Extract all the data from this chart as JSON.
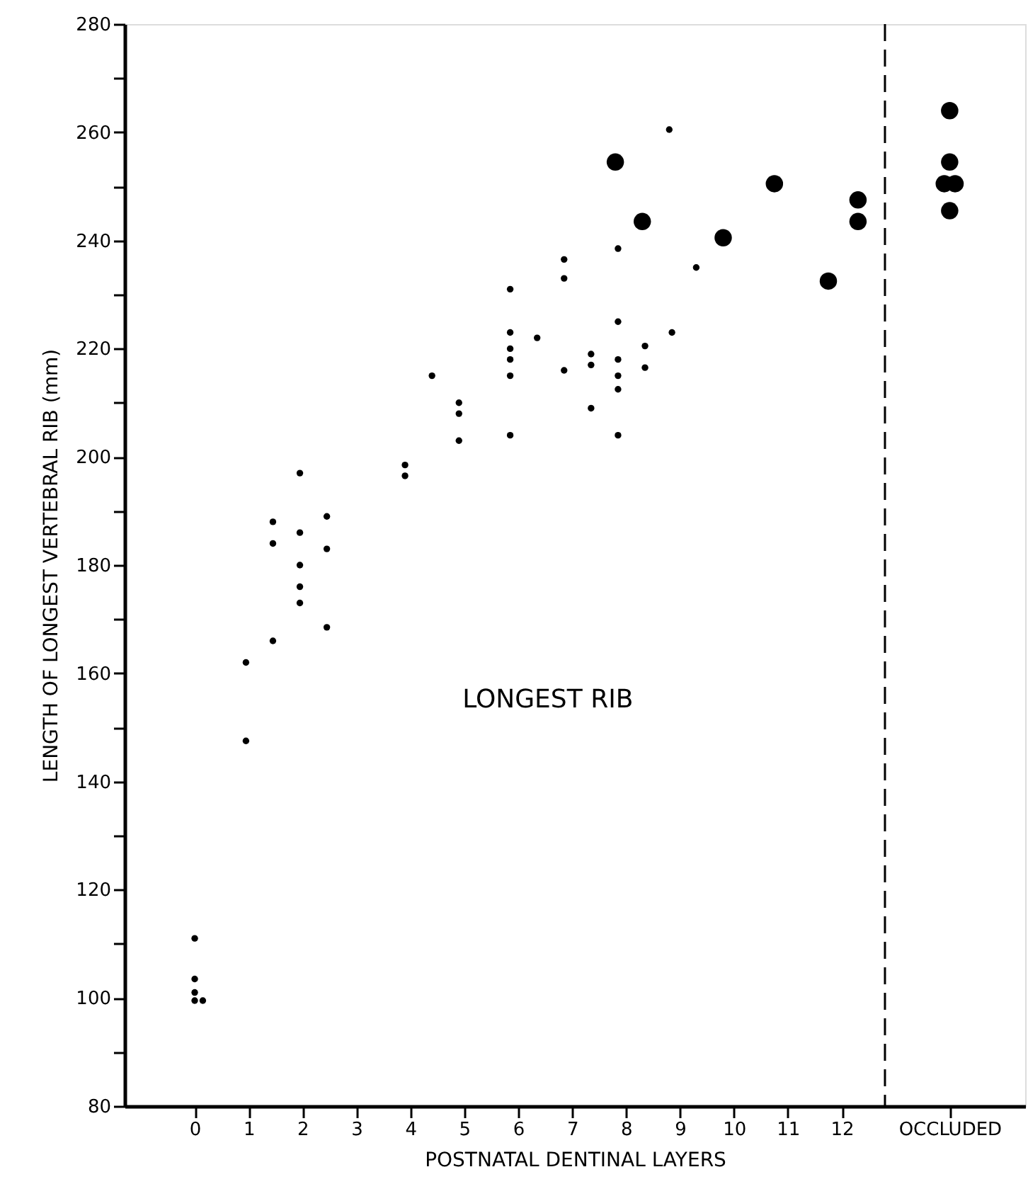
{
  "chart_data": {
    "type": "scatter",
    "xlabel": "POSTNATAL   DENTINAL   LAYERS",
    "ylabel": "LENGTH OF LONGEST VERTEBRAL RIB  (mm)",
    "annotations": [
      "LONGEST RIB"
    ],
    "xlim": [
      -1.3,
      15.4
    ],
    "ylim": [
      80,
      280
    ],
    "xticks": [
      0,
      1,
      2,
      3,
      4,
      5,
      6,
      7,
      8,
      9,
      10,
      11,
      12,
      {
        "value": 14,
        "label": "OCCLUDED"
      }
    ],
    "yticks": [
      80,
      {
        "value": 90,
        "label": null
      },
      100,
      {
        "value": 110,
        "label": null
      },
      120,
      {
        "value": 130,
        "label": null
      },
      140,
      {
        "value": 150,
        "label": null
      },
      160,
      {
        "value": 170,
        "label": null
      },
      180,
      {
        "value": 190,
        "label": null
      },
      200,
      {
        "value": 210,
        "label": null
      },
      220,
      {
        "value": 230,
        "label": null
      },
      240,
      {
        "value": 250,
        "label": null
      },
      260,
      {
        "value": 270,
        "label": null
      },
      280
    ],
    "grid": false,
    "marker": "circle",
    "ref_lines": [
      {
        "axis": "x",
        "value": 12.8,
        "color": "#000000",
        "line_style": "dashed"
      }
    ],
    "series": [
      {
        "color": "#000000",
        "x": [
          0,
          0,
          0,
          0,
          0.15,
          0.95,
          0.95,
          1.45,
          1.45,
          1.45,
          1.95,
          1.95,
          1.95,
          1.95,
          1.95,
          2.45,
          2.45,
          2.45,
          3.9,
          3.9,
          4.4,
          4.9,
          4.9,
          4.9,
          5.85,
          5.85,
          5.85,
          5.85,
          5.85,
          5.85,
          6.35,
          6.85,
          6.85,
          6.85,
          7.35,
          7.35,
          7.35,
          7.85,
          7.85,
          7.85,
          7.85,
          7.85,
          7.85,
          8.35,
          8.35,
          8.85,
          8.8,
          9.3
        ],
        "values": [
          111,
          103.5,
          101,
          99.5,
          99.5,
          162,
          147.5,
          188,
          184,
          166,
          197,
          186,
          180,
          176,
          173,
          189,
          183,
          168.5,
          198.5,
          196.5,
          215,
          210,
          208,
          203,
          231,
          223,
          220,
          218,
          215,
          204,
          222,
          236.5,
          233,
          216,
          219,
          217,
          209,
          238.5,
          225,
          218,
          215,
          212.5,
          204,
          220.5,
          216.5,
          223,
          260.5,
          235
        ]
      },
      {
        "color": "#000000",
        "x": [
          7.8,
          8.3,
          9.8,
          10.75,
          11.75,
          12.3,
          12.3,
          14,
          14,
          13.9,
          14.1,
          14
        ],
        "values": [
          254.5,
          243.5,
          240.5,
          250.5,
          232.5,
          247.5,
          243.5,
          264,
          254.5,
          250.5,
          250.5,
          245.5
        ]
      }
    ]
  }
}
